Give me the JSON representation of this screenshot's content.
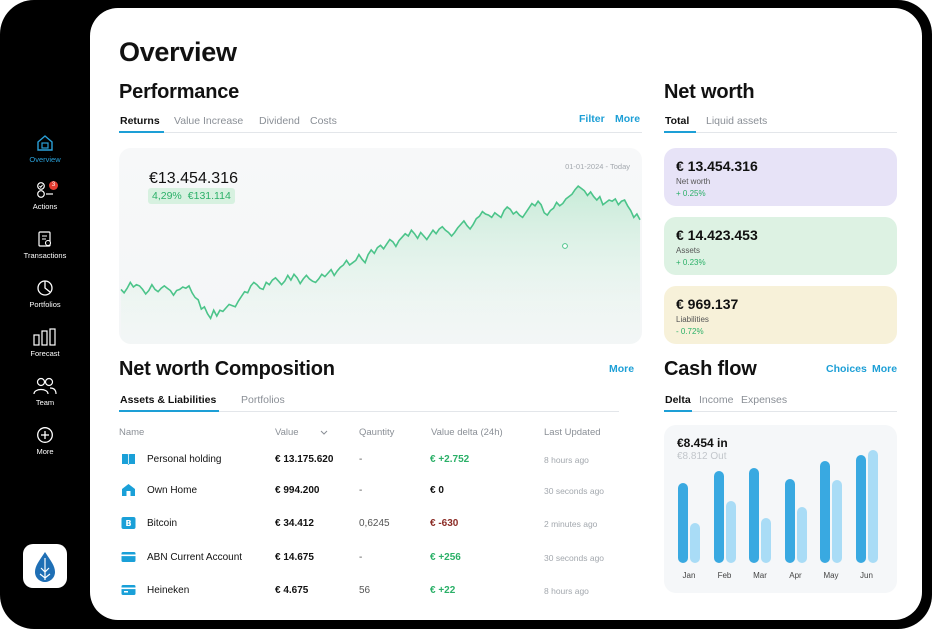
{
  "sidebar": {
    "items": [
      {
        "label": "Overview",
        "icon": "home-icon",
        "active": true
      },
      {
        "label": "Actions",
        "icon": "actions-icon",
        "badge": "3"
      },
      {
        "label": "Transactions",
        "icon": "transactions-icon"
      },
      {
        "label": "Portfolios",
        "icon": "pie-icon"
      },
      {
        "label": "Forecast",
        "icon": "forecast-icon"
      },
      {
        "label": "Team",
        "icon": "team-icon"
      },
      {
        "label": "More",
        "icon": "plus-circle-icon"
      }
    ]
  },
  "page": {
    "title": "Overview"
  },
  "performance": {
    "title": "Performance",
    "tabs": [
      "Returns",
      "Value Increase",
      "Dividend",
      "Costs"
    ],
    "filter_label": "Filter",
    "more_label": "More",
    "amount": "€13.454.316",
    "pct": "4,29%",
    "gain": "€131.114",
    "range": "01-01-2024 - Today",
    "line_color": "#4cc48a",
    "series": [
      54,
      51,
      55,
      60,
      56,
      58,
      57,
      54,
      50,
      53,
      58,
      54,
      52,
      55,
      57,
      55,
      53,
      49,
      53,
      54,
      56,
      55,
      57,
      51,
      47,
      45,
      37,
      39,
      33,
      29,
      36,
      31,
      36,
      35,
      38,
      41,
      40,
      39,
      44,
      48,
      52,
      51,
      57,
      60,
      58,
      55,
      54,
      60,
      58,
      62,
      64,
      61,
      58,
      61,
      66,
      62,
      67,
      64,
      59,
      63,
      66,
      63,
      61,
      60,
      63,
      67,
      65,
      68,
      71,
      66,
      70,
      73,
      75,
      79,
      75,
      77,
      79,
      84,
      80,
      77,
      84,
      88,
      85,
      90,
      92,
      89,
      93,
      97,
      95,
      91,
      96,
      99,
      102,
      100,
      105,
      102,
      98,
      103,
      100,
      97,
      101,
      105,
      102,
      106,
      108,
      105,
      103,
      100,
      103,
      107,
      110,
      113,
      109,
      106,
      110,
      115,
      117,
      121,
      119,
      118,
      116,
      120,
      118,
      116,
      122,
      125,
      123,
      119,
      121,
      118,
      116,
      120,
      124,
      128,
      126,
      130,
      127,
      120,
      118,
      122,
      124,
      129,
      126,
      128,
      132,
      134,
      136,
      140,
      143,
      141,
      139,
      135,
      138,
      134,
      131,
      134,
      127,
      129,
      131,
      130,
      132,
      127,
      130,
      131,
      126,
      122,
      116,
      119,
      114
    ]
  },
  "net_worth": {
    "title": "Net worth",
    "tabs": [
      "Total",
      "Liquid assets"
    ],
    "cards": [
      {
        "value": "€ 13.454.316",
        "label": "Net worth",
        "change": "+ 0.25%",
        "bg": "#e7e3f7",
        "change_color": "#2bb068"
      },
      {
        "value": "€ 14.423.453",
        "label": "Assets",
        "change": "+ 0.23%",
        "bg": "#ddf2e3",
        "change_color": "#2bb068"
      },
      {
        "value": "€ 969.137",
        "label": "Liabilities",
        "change": "- 0.72%",
        "bg": "#f7f1d9",
        "change_color": "#2bb068"
      }
    ]
  },
  "composition": {
    "title": "Net worth Composition",
    "more_label": "More",
    "tabs": [
      "Assets & Liabilities",
      "Portfolios"
    ],
    "columns": [
      "Name",
      "Value",
      "Qauntity",
      "Value delta (24h)",
      "Last Updated"
    ],
    "rows": [
      {
        "name": "Personal holding",
        "value": "€ 13.175.620",
        "qty": "-",
        "delta": "€ +2.752",
        "updated": "8 hours ago",
        "icon": "book-icon",
        "delta_color": "#2bb068"
      },
      {
        "name": "Own Home",
        "value": "€ 994.200",
        "qty": "-",
        "delta": "€ 0",
        "updated": "30 seconds ago",
        "icon": "house-icon",
        "delta_color": "#111111"
      },
      {
        "name": "Bitcoin",
        "value": "€ 34.412",
        "qty": "0,6245",
        "delta": "€ -630",
        "updated": "2 minutes ago",
        "icon": "bitcoin-icon",
        "delta_color": "#8b2b25"
      },
      {
        "name": "ABN Current Account",
        "value": "€ 14.675",
        "qty": "-",
        "delta": "€ +256",
        "updated": "30 seconds ago",
        "icon": "card-icon",
        "delta_color": "#2bb068"
      },
      {
        "name": "Heineken",
        "value": "€ 4.675",
        "qty": "56",
        "delta": "€ +22",
        "updated": "8 hours ago",
        "icon": "stock-icon",
        "delta_color": "#2bb068"
      }
    ]
  },
  "cash_flow": {
    "title": "Cash flow",
    "choices_label": "Choices",
    "more_label": "More",
    "tabs": [
      "Delta",
      "Income",
      "Expenses"
    ],
    "in_label": "€8.454 in",
    "out_label": "€8.812 Out",
    "chart_data": {
      "type": "bar",
      "categories": [
        "Jan",
        "Feb",
        "Mar",
        "Apr",
        "May",
        "Jun"
      ],
      "series": [
        {
          "values": [
            80,
            92,
            95,
            84,
            102,
            108
          ],
          "color": "#39a9e1"
        },
        {
          "values": [
            40,
            62,
            45,
            56,
            83,
            113
          ],
          "color": "#a9dcf6"
        }
      ],
      "ylim": [
        0,
        120
      ]
    }
  }
}
